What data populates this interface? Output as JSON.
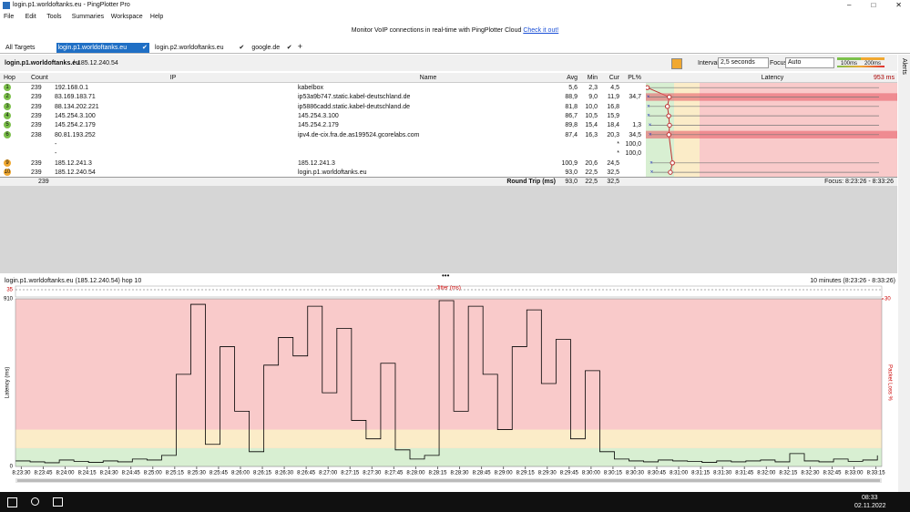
{
  "window": {
    "title": "login.p1.worldoftanks.eu - PingPlotter Pro"
  },
  "menu": [
    "File",
    "Edit",
    "Tools",
    "Summaries",
    "Workspace",
    "Help"
  ],
  "banner": {
    "text": "Monitor VoIP connections in real-time with PingPlotter Cloud",
    "link": "Check it out!"
  },
  "tabs": [
    "All Targets",
    "login.p1.worldoftanks.eu",
    "login.p2.worldoftanks.eu",
    "google.de"
  ],
  "target": {
    "name": "login.p1.worldoftanks.eu",
    "ip": "185.12.240.54",
    "interval_label": "Interval",
    "interval": "2,5 seconds",
    "focus_label": "Focus",
    "focus": "Auto",
    "alerts": "Alerts"
  },
  "table": {
    "columns": [
      "Hop",
      "Count",
      "IP",
      "Name",
      "Avg",
      "Min",
      "Cur",
      "PL%",
      "Latency"
    ],
    "max_latency": "953 ms",
    "rows": [
      {
        "hop": "1",
        "count": "239",
        "ip": "192.168.0.1",
        "name": "kabelbox",
        "avg": "5,6",
        "min": "2,3",
        "cur": "4,5",
        "pl": null,
        "color": "#7cc04b"
      },
      {
        "hop": "2",
        "count": "239",
        "ip": "83.169.183.71",
        "name": "ip53a9b747.static.kabel-deutschland.de",
        "avg": "88,9",
        "min": "9,0",
        "cur": "11,9",
        "pl": "34,7",
        "color": "#7cc04b"
      },
      {
        "hop": "3",
        "count": "239",
        "ip": "88.134.202.221",
        "name": "ip5886cadd.static.kabel-deutschland.de",
        "avg": "81,8",
        "min": "10,0",
        "cur": "16,8",
        "pl": null,
        "color": "#7cc04b"
      },
      {
        "hop": "4",
        "count": "239",
        "ip": "145.254.3.100",
        "name": "145.254.3.100",
        "avg": "86,7",
        "min": "10,5",
        "cur": "15,9",
        "pl": null,
        "color": "#7cc04b"
      },
      {
        "hop": "5",
        "count": "239",
        "ip": "145.254.2.179",
        "name": "145.254.2.179",
        "avg": "89,8",
        "min": "15,4",
        "cur": "18,4",
        "pl": "1,3",
        "color": "#7cc04b"
      },
      {
        "hop": "6",
        "count": "238",
        "ip": "80.81.193.252",
        "name": "ipv4.de-cix.fra.de.as199524.gcorelabs.com",
        "avg": "87,4",
        "min": "16,3",
        "cur": "20,3",
        "pl": "34,5",
        "color": "#7cc04b"
      },
      {
        "hop": null,
        "count": null,
        "ip": "-",
        "name": null,
        "avg": null,
        "min": null,
        "cur": "*",
        "pl": "100,0",
        "color": null
      },
      {
        "hop": null,
        "count": null,
        "ip": "-",
        "name": null,
        "avg": null,
        "min": null,
        "cur": "*",
        "pl": "100,0",
        "color": null
      },
      {
        "hop": "9",
        "count": "239",
        "ip": "185.12.241.3",
        "name": "185.12.241.3",
        "avg": "100,9",
        "min": "20,6",
        "cur": "24,5",
        "pl": null,
        "color": "#f0a830"
      },
      {
        "hop": "10",
        "count": "239",
        "ip": "185.12.240.54",
        "name": "login.p1.worldoftanks.eu",
        "avg": "93,0",
        "min": "22,5",
        "cur": "32,5",
        "pl": null,
        "color": "#f0a830"
      }
    ],
    "footer": {
      "count": "239",
      "label": "Round Trip (ms)",
      "avg": "93,0",
      "min": "22,5",
      "cur": "32,5",
      "focus": "Focus: 8:23:26 - 8:33:26"
    }
  },
  "graph": {
    "title": "login.p1.worldoftanks.eu (185.12.240.54) hop 10",
    "range": "10 minutes (8:23:26 - 8:33:26)"
  },
  "jitter": {
    "label": "Jitter (ms)",
    "yticks": [
      35
    ]
  },
  "chart_data": {
    "type": "line",
    "ylabel": "Latency (ms)",
    "y2label": "Packet Loss %",
    "ylim": [
      0,
      910
    ],
    "yticks": [
      0,
      910
    ],
    "y2lim": [
      0,
      30
    ],
    "y2ticks": [
      30
    ],
    "thresholds": [
      {
        "value": 100,
        "label": "100ms",
        "color": "#d8efd2"
      },
      {
        "value": 200,
        "label": "200ms",
        "color": "#fbecc8"
      }
    ],
    "high_color": "#f9caca",
    "xlim": [
      0,
      593
    ],
    "xticks": [
      {
        "value": 4,
        "label": "8:23:30"
      },
      {
        "value": 19,
        "label": "8:23:45"
      },
      {
        "value": 34,
        "label": "8:24:00"
      },
      {
        "value": 49,
        "label": "8:24:15"
      },
      {
        "value": 64,
        "label": "8:24:30"
      },
      {
        "value": 79,
        "label": "8:24:45"
      },
      {
        "value": 94,
        "label": "8:25:00"
      },
      {
        "value": 109,
        "label": "8:25:15"
      },
      {
        "value": 124,
        "label": "8:25:30"
      },
      {
        "value": 139,
        "label": "8:25:45"
      },
      {
        "value": 154,
        "label": "8:26:00"
      },
      {
        "value": 169,
        "label": "8:26:15"
      },
      {
        "value": 184,
        "label": "8:26:30"
      },
      {
        "value": 199,
        "label": "8:26:45"
      },
      {
        "value": 214,
        "label": "8:27:00"
      },
      {
        "value": 229,
        "label": "8:27:15"
      },
      {
        "value": 244,
        "label": "8:27:30"
      },
      {
        "value": 259,
        "label": "8:27:45"
      },
      {
        "value": 274,
        "label": "8:28:00"
      },
      {
        "value": 289,
        "label": "8:28:15"
      },
      {
        "value": 304,
        "label": "8:28:30"
      },
      {
        "value": 319,
        "label": "8:28:45"
      },
      {
        "value": 334,
        "label": "8:29:00"
      },
      {
        "value": 349,
        "label": "8:29:15"
      },
      {
        "value": 364,
        "label": "8:29:30"
      },
      {
        "value": 379,
        "label": "8:29:45"
      },
      {
        "value": 394,
        "label": "8:30:00"
      },
      {
        "value": 409,
        "label": "8:30:15"
      },
      {
        "value": 424,
        "label": "8:30:30"
      },
      {
        "value": 439,
        "label": "8:30:45"
      },
      {
        "value": 454,
        "label": "8:31:00"
      },
      {
        "value": 469,
        "label": "8:31:15"
      },
      {
        "value": 484,
        "label": "8:31:30"
      },
      {
        "value": 499,
        "label": "8:31:45"
      },
      {
        "value": 514,
        "label": "8:32:00"
      },
      {
        "value": 529,
        "label": "8:32:15"
      },
      {
        "value": 544,
        "label": "8:32:30"
      },
      {
        "value": 559,
        "label": "8:32:45"
      },
      {
        "value": 574,
        "label": "8:33:00"
      },
      {
        "value": 589,
        "label": "8:33:15"
      }
    ],
    "x": [
      0,
      10,
      20,
      30,
      40,
      50,
      60,
      70,
      80,
      90,
      100,
      110,
      120,
      130,
      140,
      150,
      160,
      170,
      180,
      190,
      200,
      210,
      220,
      230,
      240,
      250,
      260,
      270,
      280,
      290,
      300,
      310,
      320,
      330,
      340,
      350,
      360,
      370,
      380,
      390,
      400,
      410,
      420,
      430,
      440,
      450,
      460,
      470,
      480,
      490,
      500,
      510,
      520,
      530,
      540,
      550,
      560,
      570,
      580,
      590
    ],
    "values": [
      30,
      25,
      20,
      35,
      28,
      22,
      30,
      25,
      40,
      35,
      60,
      500,
      880,
      120,
      650,
      300,
      80,
      550,
      700,
      600,
      870,
      400,
      750,
      250,
      150,
      560,
      90,
      40,
      60,
      900,
      300,
      870,
      500,
      200,
      650,
      850,
      450,
      690,
      150,
      520,
      80,
      40,
      30,
      25,
      35,
      30,
      28,
      22,
      30,
      25,
      30,
      35,
      25,
      70,
      30,
      25,
      40,
      28,
      35,
      60
    ],
    "color": "#000000"
  },
  "taskbar": {
    "time": "08:33",
    "date": "02.11.2022"
  }
}
